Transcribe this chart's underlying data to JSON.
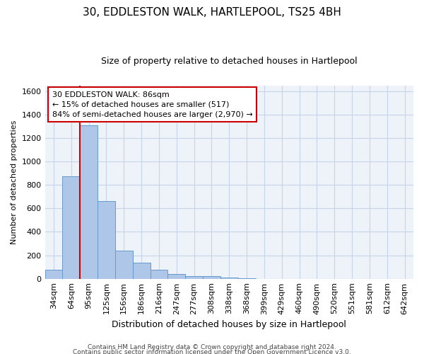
{
  "title1": "30, EDDLESTON WALK, HARTLEPOOL, TS25 4BH",
  "title2": "Size of property relative to detached houses in Hartlepool",
  "xlabel": "Distribution of detached houses by size in Hartlepool",
  "ylabel": "Number of detached properties",
  "categories": [
    "34sqm",
    "64sqm",
    "95sqm",
    "125sqm",
    "156sqm",
    "186sqm",
    "216sqm",
    "247sqm",
    "277sqm",
    "308sqm",
    "338sqm",
    "368sqm",
    "399sqm",
    "429sqm",
    "460sqm",
    "490sqm",
    "520sqm",
    "551sqm",
    "581sqm",
    "612sqm",
    "642sqm"
  ],
  "values": [
    75,
    875,
    1310,
    660,
    240,
    140,
    75,
    40,
    25,
    25,
    12,
    5,
    0,
    0,
    0,
    0,
    0,
    0,
    0,
    0,
    0
  ],
  "bar_color": "#aec6e8",
  "bar_edge_color": "#6699cc",
  "vline_x": 1.5,
  "vline_color": "#cc0000",
  "ylim": [
    0,
    1650
  ],
  "yticks": [
    0,
    200,
    400,
    600,
    800,
    1000,
    1200,
    1400,
    1600
  ],
  "annotation_text": "30 EDDLESTON WALK: 86sqm\n← 15% of detached houses are smaller (517)\n84% of semi-detached houses are larger (2,970) →",
  "annotation_box_facecolor": "#ffffff",
  "annotation_box_edgecolor": "#cc0000",
  "footer1": "Contains HM Land Registry data © Crown copyright and database right 2024.",
  "footer2": "Contains public sector information licensed under the Open Government Licence v3.0.",
  "grid_color": "#c8d4e8",
  "background_color": "#eef2f9",
  "title1_fontsize": 11,
  "title2_fontsize": 9,
  "ylabel_fontsize": 8,
  "xlabel_fontsize": 9,
  "tick_fontsize": 8,
  "ann_fontsize": 8,
  "footer_fontsize": 6.5
}
